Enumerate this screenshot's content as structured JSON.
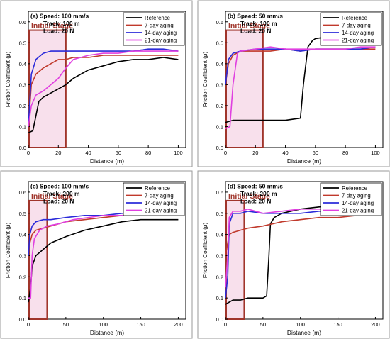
{
  "colors": {
    "reference": "#000000",
    "7-day": "#c0392b",
    "14-day": "#2b2bd9",
    "21-day": "#e040e0",
    "initial_stage_box": "#a0352b",
    "initial_stage_fill": "#f3c7dd"
  },
  "chart_data": [
    {
      "type": "line",
      "panel_label": "(a)",
      "title_lines": [
        "(a) Speed: 100 mm/s",
        "Track: 100 m",
        "Load: 20 N"
      ],
      "xlabel": "Distance (m)",
      "ylabel": "Friction Coefficient (μ)",
      "xlim": [
        0,
        105
      ],
      "ylim": [
        0,
        0.65
      ],
      "xticks": [
        0,
        20,
        40,
        60,
        80,
        100
      ],
      "yticks": [
        0.0,
        0.1,
        0.2,
        0.3,
        0.4,
        0.5,
        0.6
      ],
      "xtick_labels": [
        "0",
        "20",
        "40",
        "60",
        "80",
        "100"
      ],
      "ytick_labels": [
        "0.0",
        "0.1",
        "0.2",
        "0.3",
        "0.4",
        "0.5",
        "0.6"
      ],
      "annotation": {
        "text": "Initial Stage",
        "x_range": [
          0,
          25
        ],
        "y_range": [
          0,
          0.56
        ]
      },
      "legend_position": "top-right",
      "series": [
        {
          "name": "Reference",
          "key": "reference",
          "x": [
            0,
            3,
            5,
            7,
            10,
            15,
            20,
            25,
            30,
            40,
            50,
            60,
            70,
            80,
            90,
            100
          ],
          "y": [
            0.07,
            0.08,
            0.15,
            0.22,
            0.24,
            0.26,
            0.28,
            0.3,
            0.33,
            0.37,
            0.39,
            0.41,
            0.42,
            0.42,
            0.43,
            0.42
          ]
        },
        {
          "name": "7-day  aging",
          "key": "7-day",
          "x": [
            0,
            2,
            5,
            10,
            15,
            20,
            25,
            30,
            40,
            50,
            60,
            70,
            80,
            90,
            100
          ],
          "y": [
            0.1,
            0.3,
            0.35,
            0.38,
            0.4,
            0.42,
            0.42,
            0.43,
            0.43,
            0.44,
            0.44,
            0.44,
            0.44,
            0.44,
            0.44
          ]
        },
        {
          "name": "14-day  aging",
          "key": "14-day",
          "x": [
            0,
            2,
            5,
            10,
            15,
            20,
            30,
            40,
            50,
            60,
            70,
            80,
            90,
            100
          ],
          "y": [
            0.1,
            0.35,
            0.42,
            0.45,
            0.46,
            0.46,
            0.46,
            0.46,
            0.46,
            0.46,
            0.46,
            0.47,
            0.47,
            0.46
          ]
        },
        {
          "name": "21-day  aging",
          "key": "21-day",
          "x": [
            0,
            2,
            5,
            10,
            15,
            20,
            25,
            30,
            40,
            50,
            60,
            70,
            80,
            90,
            100
          ],
          "y": [
            0.1,
            0.2,
            0.25,
            0.27,
            0.3,
            0.33,
            0.38,
            0.42,
            0.44,
            0.45,
            0.45,
            0.46,
            0.46,
            0.46,
            0.46
          ]
        }
      ]
    },
    {
      "type": "line",
      "panel_label": "(b)",
      "title_lines": [
        "(b) Speed: 50 mm/s",
        "Track: 100 m",
        "Load: 20 N"
      ],
      "xlabel": "Distance (m)",
      "ylabel": "Friction Coefficient (μ)",
      "xlim": [
        0,
        105
      ],
      "ylim": [
        0,
        0.65
      ],
      "xticks": [
        0,
        20,
        40,
        60,
        80,
        100
      ],
      "yticks": [
        0.0,
        0.1,
        0.2,
        0.3,
        0.4,
        0.5,
        0.6
      ],
      "xtick_labels": [
        "0",
        "20",
        "40",
        "60",
        "80",
        "100"
      ],
      "ytick_labels": [
        "0.0",
        "0.1",
        "0.2",
        "0.3",
        "0.4",
        "0.5",
        "0.6"
      ],
      "annotation": {
        "text": "Initial Stage",
        "x_range": [
          0,
          25
        ],
        "y_range": [
          0,
          0.56
        ]
      },
      "legend_position": "top-right",
      "series": [
        {
          "name": "Reference",
          "key": "reference",
          "x": [
            0,
            5,
            10,
            20,
            30,
            40,
            50,
            52,
            55,
            58,
            60,
            70,
            80,
            90,
            100
          ],
          "y": [
            0.12,
            0.13,
            0.13,
            0.13,
            0.13,
            0.13,
            0.14,
            0.3,
            0.48,
            0.51,
            0.52,
            0.53,
            0.53,
            0.54,
            0.54
          ]
        },
        {
          "name": "7-day  aging",
          "key": "7-day",
          "x": [
            0,
            2,
            5,
            10,
            20,
            30,
            40,
            50,
            60,
            70,
            80,
            90,
            100
          ],
          "y": [
            0.3,
            0.4,
            0.44,
            0.46,
            0.46,
            0.46,
            0.47,
            0.46,
            0.47,
            0.47,
            0.47,
            0.47,
            0.47
          ]
        },
        {
          "name": "14-day  aging",
          "key": "14-day",
          "x": [
            0,
            2,
            5,
            10,
            20,
            30,
            40,
            50,
            60,
            70,
            80,
            90,
            100
          ],
          "y": [
            0.3,
            0.42,
            0.45,
            0.46,
            0.47,
            0.47,
            0.47,
            0.46,
            0.47,
            0.47,
            0.47,
            0.47,
            0.48
          ]
        },
        {
          "name": "21-day  aging",
          "key": "21-day",
          "x": [
            0,
            3,
            5,
            8,
            10,
            20,
            30,
            40,
            50,
            60,
            70,
            80,
            90,
            100
          ],
          "y": [
            0.09,
            0.1,
            0.3,
            0.45,
            0.46,
            0.47,
            0.48,
            0.47,
            0.47,
            0.47,
            0.47,
            0.47,
            0.48,
            0.48
          ]
        }
      ]
    },
    {
      "type": "line",
      "panel_label": "(c)",
      "title_lines": [
        "(c) Speed: 100 mm/s",
        "Track: 200 m",
        "Load: 20 N"
      ],
      "xlabel": "Distance (m)",
      "ylabel": "Friction Coefficient (μ)",
      "xlim": [
        0,
        210
      ],
      "ylim": [
        0,
        0.65
      ],
      "xticks": [
        0,
        50,
        100,
        150,
        200
      ],
      "yticks": [
        0.0,
        0.1,
        0.2,
        0.3,
        0.4,
        0.5,
        0.6
      ],
      "xtick_labels": [
        "0",
        "50",
        "100",
        "150",
        "200"
      ],
      "ytick_labels": [
        "0.0",
        "0.1",
        "0.2",
        "0.3",
        "0.4",
        "0.5",
        "0.6"
      ],
      "annotation": {
        "text": "Initial Stage",
        "x_range": [
          0,
          25
        ],
        "y_range": [
          0,
          0.56
        ]
      },
      "legend_position": "top-right",
      "series": [
        {
          "name": "Reference",
          "key": "reference",
          "x": [
            0,
            3,
            5,
            10,
            20,
            30,
            50,
            75,
            100,
            125,
            150,
            175,
            200
          ],
          "y": [
            0.08,
            0.15,
            0.25,
            0.3,
            0.33,
            0.36,
            0.39,
            0.42,
            0.44,
            0.46,
            0.47,
            0.47,
            0.47
          ]
        },
        {
          "name": "7-day  aging",
          "key": "7-day",
          "x": [
            0,
            2,
            5,
            10,
            20,
            30,
            50,
            75,
            100,
            125,
            150,
            175,
            200
          ],
          "y": [
            0.3,
            0.36,
            0.4,
            0.42,
            0.43,
            0.44,
            0.46,
            0.47,
            0.48,
            0.49,
            0.5,
            0.5,
            0.5
          ]
        },
        {
          "name": "14-day  aging",
          "key": "14-day",
          "x": [
            0,
            2,
            5,
            10,
            20,
            30,
            50,
            75,
            100,
            125,
            150,
            175,
            200
          ],
          "y": [
            0.3,
            0.4,
            0.44,
            0.46,
            0.47,
            0.47,
            0.48,
            0.49,
            0.49,
            0.5,
            0.5,
            0.51,
            0.51
          ]
        },
        {
          "name": "21-day  aging",
          "key": "21-day",
          "x": [
            0,
            3,
            5,
            8,
            15,
            25,
            40,
            60,
            80,
            100,
            125,
            150,
            175,
            200
          ],
          "y": [
            0.1,
            0.1,
            0.3,
            0.38,
            0.42,
            0.44,
            0.45,
            0.47,
            0.48,
            0.49,
            0.49,
            0.5,
            0.5,
            0.5
          ]
        }
      ]
    },
    {
      "type": "line",
      "panel_label": "(d)",
      "title_lines": [
        "(d) Speed: 50 mm/s",
        "Track: 200 m",
        "Load: 20 N"
      ],
      "xlabel": "Distance (m)",
      "ylabel": "Friction Coefficient (μ)",
      "xlim": [
        0,
        210
      ],
      "ylim": [
        0,
        0.65
      ],
      "xticks": [
        0,
        50,
        100,
        150,
        200
      ],
      "yticks": [
        0.0,
        0.1,
        0.2,
        0.3,
        0.4,
        0.5,
        0.6
      ],
      "xtick_labels": [
        "0",
        "50",
        "100",
        "150",
        "200"
      ],
      "ytick_labels": [
        "0.0",
        "0.1",
        "0.2",
        "0.3",
        "0.4",
        "0.5",
        "0.6"
      ],
      "annotation": {
        "text": "Initial Stage",
        "x_range": [
          0,
          25
        ],
        "y_range": [
          0,
          0.56
        ]
      },
      "legend_position": "top-right",
      "series": [
        {
          "name": "Reference",
          "key": "reference",
          "x": [
            0,
            10,
            20,
            30,
            40,
            50,
            55,
            58,
            60,
            65,
            75,
            100,
            125,
            150,
            175,
            200
          ],
          "y": [
            0.07,
            0.09,
            0.09,
            0.1,
            0.1,
            0.1,
            0.11,
            0.3,
            0.45,
            0.48,
            0.5,
            0.52,
            0.53,
            0.54,
            0.55,
            0.55
          ]
        },
        {
          "name": "7-day  aging",
          "key": "7-day",
          "x": [
            0,
            3,
            5,
            10,
            20,
            30,
            50,
            75,
            100,
            125,
            150,
            175,
            200
          ],
          "y": [
            0.3,
            0.36,
            0.4,
            0.41,
            0.42,
            0.43,
            0.44,
            0.46,
            0.47,
            0.48,
            0.48,
            0.49,
            0.49
          ]
        },
        {
          "name": "14-day  aging",
          "key": "14-day",
          "x": [
            0,
            3,
            5,
            10,
            20,
            30,
            50,
            75,
            100,
            125,
            150,
            175,
            200
          ],
          "y": [
            0.1,
            0.2,
            0.45,
            0.5,
            0.5,
            0.51,
            0.5,
            0.5,
            0.5,
            0.51,
            0.51,
            0.51,
            0.51
          ]
        },
        {
          "name": "21-day  aging",
          "key": "21-day",
          "x": [
            0,
            3,
            5,
            10,
            20,
            30,
            50,
            75,
            100,
            125,
            150,
            175,
            200
          ],
          "y": [
            0.15,
            0.3,
            0.48,
            0.51,
            0.51,
            0.52,
            0.5,
            0.51,
            0.52,
            0.52,
            0.51,
            0.52,
            0.52
          ]
        }
      ]
    }
  ]
}
